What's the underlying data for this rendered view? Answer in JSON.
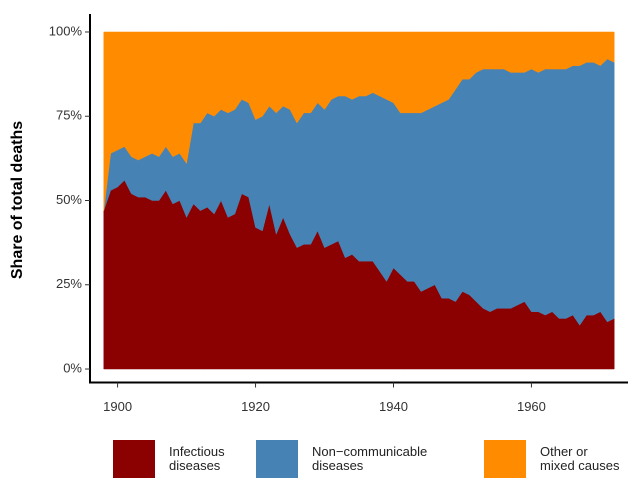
{
  "chart_data": {
    "type": "stacked-area",
    "y_label": "Share of total deaths",
    "x": [
      1898,
      1899,
      1900,
      1901,
      1902,
      1903,
      1904,
      1905,
      1906,
      1907,
      1908,
      1909,
      1910,
      1911,
      1912,
      1913,
      1914,
      1915,
      1916,
      1917,
      1918,
      1919,
      1920,
      1921,
      1922,
      1923,
      1924,
      1925,
      1926,
      1927,
      1928,
      1929,
      1930,
      1931,
      1932,
      1933,
      1934,
      1935,
      1936,
      1937,
      1938,
      1939,
      1940,
      1941,
      1942,
      1943,
      1944,
      1945,
      1946,
      1947,
      1948,
      1949,
      1950,
      1951,
      1952,
      1953,
      1954,
      1955,
      1956,
      1957,
      1958,
      1959,
      1960,
      1961,
      1962,
      1963,
      1964,
      1965,
      1966,
      1967,
      1968,
      1969,
      1970,
      1971,
      1972
    ],
    "series": [
      {
        "name": "Infectious diseases",
        "color": "#8b0000",
        "values": [
          47,
          53,
          54,
          56,
          52,
          51,
          51,
          50,
          50,
          53,
          49,
          50,
          45,
          49,
          47,
          48,
          46,
          50,
          45,
          46,
          52,
          51,
          42,
          41,
          49,
          40,
          45,
          40,
          36,
          37,
          37,
          41,
          36,
          37,
          38,
          33,
          34,
          32,
          32,
          32,
          29,
          26,
          30,
          28,
          26,
          26,
          23,
          24,
          25,
          21,
          21,
          20,
          23,
          22,
          20,
          18,
          17,
          18,
          18,
          18,
          19,
          20,
          17,
          17,
          16,
          17,
          15,
          15,
          16,
          13,
          16,
          16,
          17,
          14,
          15
        ]
      },
      {
        "name": "Non−communicable diseases",
        "color": "#4682b4",
        "values": [
          0,
          11,
          11,
          10,
          11,
          11,
          12,
          14,
          13,
          13,
          14,
          14,
          16,
          24,
          26,
          28,
          29,
          27,
          31,
          31,
          28,
          28,
          32,
          34,
          29,
          36,
          33,
          37,
          37,
          39,
          39,
          38,
          41,
          43,
          43,
          48,
          46,
          49,
          49,
          50,
          52,
          54,
          49,
          48,
          50,
          50,
          53,
          53,
          53,
          58,
          59,
          63,
          63,
          64,
          68,
          71,
          72,
          71,
          71,
          70,
          69,
          68,
          72,
          71,
          73,
          72,
          74,
          74,
          74,
          77,
          75,
          75,
          73,
          78,
          76
        ]
      },
      {
        "name": "Other or mixed causes",
        "color": "#ff8c00",
        "values": [
          53,
          36,
          35,
          34,
          37,
          38,
          37,
          36,
          37,
          34,
          37,
          36,
          39,
          27,
          27,
          24,
          25,
          23,
          24,
          23,
          20,
          21,
          26,
          25,
          22,
          24,
          22,
          23,
          27,
          24,
          24,
          21,
          23,
          20,
          19,
          19,
          20,
          19,
          19,
          18,
          19,
          20,
          21,
          24,
          24,
          24,
          24,
          23,
          22,
          21,
          20,
          17,
          14,
          14,
          12,
          11,
          11,
          11,
          11,
          12,
          12,
          12,
          11,
          12,
          11,
          11,
          11,
          11,
          10,
          10,
          9,
          9,
          10,
          8,
          9
        ]
      }
    ],
    "xlim": [
      1896,
      1974
    ],
    "xticks": [
      1900,
      1920,
      1940,
      1960
    ],
    "ylim": [
      -4,
      104
    ],
    "yticks": [
      {
        "value": 0,
        "label": "0%"
      },
      {
        "value": 25,
        "label": "25%"
      },
      {
        "value": 50,
        "label": "50%"
      },
      {
        "value": 75,
        "label": "75%"
      },
      {
        "value": 100,
        "label": "100%"
      }
    ],
    "grid": false,
    "legend": "bottom"
  }
}
